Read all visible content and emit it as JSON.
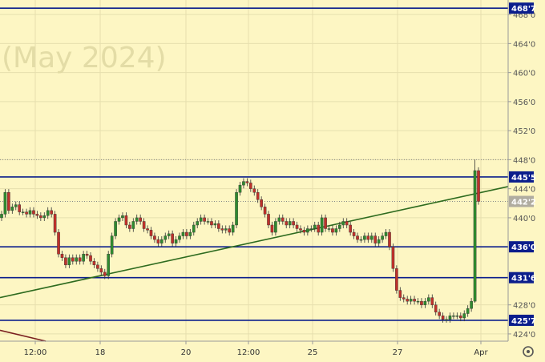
{
  "chart_data": {
    "type": "candlestick",
    "title": "",
    "watermark": "(May 2024)",
    "ylim": [
      423.0,
      470.0
    ],
    "y_ticks": [
      {
        "value": 424.0,
        "label": "424'0"
      },
      {
        "value": 428.0,
        "label": "428'0"
      },
      {
        "value": 440.0,
        "label": "440'0"
      },
      {
        "value": 444.0,
        "label": "444'0"
      },
      {
        "value": 448.0,
        "label": "448'0"
      },
      {
        "value": 452.0,
        "label": "452'0"
      },
      {
        "value": 456.0,
        "label": "456'0"
      },
      {
        "value": 460.0,
        "label": "460'0"
      },
      {
        "value": 464.0,
        "label": "464'0"
      },
      {
        "value": 468.0,
        "label": "468'0"
      }
    ],
    "x_ticks": [
      "12:00",
      "18",
      "20",
      "12:00",
      "25",
      "27",
      "Apr"
    ],
    "levels": [
      {
        "value": 468.875,
        "label": "468'7"
      },
      {
        "value": 445.625,
        "label": "445'5"
      },
      {
        "value": 436.0,
        "label": "436'0"
      },
      {
        "value": 431.75,
        "label": "431'6"
      },
      {
        "value": 425.875,
        "label": "425'7"
      }
    ],
    "last_price": {
      "value": 442.25,
      "label": "442'2"
    },
    "dotted_high": 448.0,
    "trendline": {
      "from": [
        0,
        429.0
      ],
      "to": [
        1,
        444.3
      ]
    },
    "trendline2": {
      "from": [
        0,
        424.5
      ],
      "to": [
        0.09,
        423.0
      ]
    },
    "grid": true,
    "series": [
      {
        "values": [
          440.5,
          443.5,
          441,
          441.5,
          441.8,
          440.8,
          440.8,
          440.5,
          441,
          440.5,
          440.3,
          440,
          440.3,
          441,
          440.5,
          438,
          435,
          434.5,
          433.5,
          434.5,
          434,
          434.5,
          434,
          435,
          434.8,
          434,
          433.5,
          433,
          432.5,
          432,
          435,
          437.5,
          439.5,
          440,
          440.3,
          439,
          438.5,
          439.5,
          440,
          439.5,
          438.5,
          438.3,
          437.5,
          437,
          436.5,
          437,
          437.5,
          437.8,
          436.5,
          437,
          437.5,
          438,
          437.5,
          438,
          439,
          439.5,
          440,
          439.5,
          439.5,
          439,
          439.2,
          438.5,
          438.3,
          438.5,
          438,
          439,
          443.5,
          444.5,
          445,
          444.8,
          444,
          443.5,
          442.5,
          441.5,
          440.5,
          439,
          438,
          439.5,
          440,
          439.5,
          439,
          439.5,
          439,
          438.5,
          438.3,
          438,
          438.5,
          438.5,
          439,
          438,
          440,
          438.5,
          438.5,
          438,
          438.5,
          439,
          439.5,
          439,
          438,
          437.5,
          437,
          437,
          437.5,
          437,
          437.5,
          436.5,
          437,
          437.5,
          438,
          436,
          433,
          430,
          429,
          428.8,
          428.5,
          428.8,
          428.5,
          428.5,
          428,
          428.5,
          429,
          428,
          427,
          426.5,
          426,
          426,
          426.5,
          426.5,
          426.5,
          426.2,
          426.8,
          427.5,
          428.5,
          446.5,
          442.25
        ]
      }
    ]
  }
}
